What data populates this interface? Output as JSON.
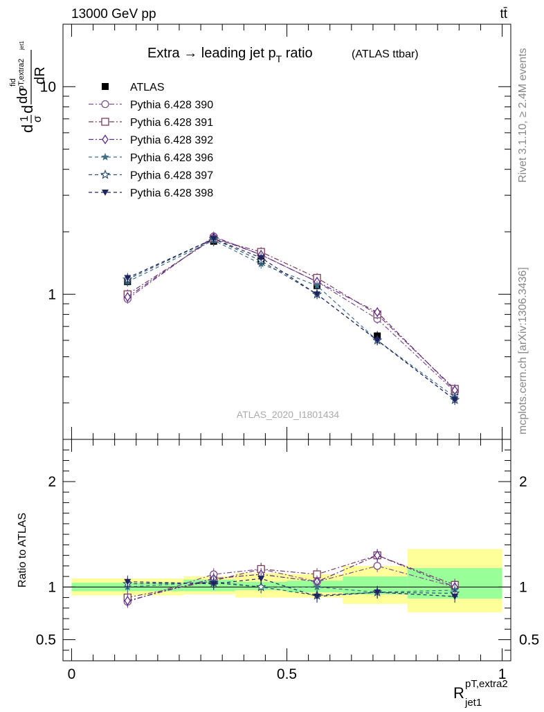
{
  "header": {
    "left": "13000 GeV pp",
    "right": "tt̄"
  },
  "side_labels": {
    "rivet": "Rivet 3.1.10, ≥ 2.4M events",
    "mcplots": "mcplots.cern.ch [arXiv:1306.3436]"
  },
  "watermark": "ATLAS_2020_I1801434",
  "chart_data": [
    {
      "type": "scatter",
      "title": "Extra → leading jet p",
      "title_sub": "T",
      "title_tail": " ratio",
      "title_note": "(ATLAS ttbar)",
      "ylabel_parts": {
        "d": "d",
        "one": "1",
        "sigma": "σ",
        "dsig": "dσ",
        "fid": "fid",
        "ptsub": "pT,extra2",
        "jet1": "jet1",
        "dR": "dR"
      },
      "yscale": "log",
      "ylim": [
        0.2,
        20
      ],
      "xlim": [
        -0.02,
        1.02
      ],
      "y_tick_labels": [
        {
          "v": 1,
          "t": "1"
        },
        {
          "v": 10,
          "t": "10"
        }
      ],
      "x": [
        0.13,
        0.33,
        0.44,
        0.57,
        0.71,
        0.89
      ],
      "series": [
        {
          "name": "ATLAS",
          "color": "#000000",
          "marker": "square-filled",
          "dash": "",
          "values": [
            1.15,
            1.8,
            1.45,
            1.1,
            0.63,
            0.34
          ]
        },
        {
          "name": "Pythia 6.428 390",
          "color": "#7d4d8c",
          "marker": "circle-open",
          "dash": "7,3,2,3",
          "values": [
            0.95,
            1.9,
            1.55,
            1.15,
            0.76,
            0.34
          ]
        },
        {
          "name": "Pythia 6.428 391",
          "color": "#7a3a5a",
          "marker": "square-open",
          "dash": "7,3,2,3",
          "values": [
            1.0,
            1.85,
            1.6,
            1.2,
            0.8,
            0.35
          ]
        },
        {
          "name": "Pythia 6.428 392",
          "color": "#5b2c88",
          "marker": "diamond-open",
          "dash": "7,3,2,3",
          "values": [
            0.97,
            1.88,
            1.55,
            1.15,
            0.82,
            0.345
          ]
        },
        {
          "name": "Pythia 6.428 396",
          "color": "#3e6f87",
          "marker": "star-filled",
          "dash": "5,4",
          "values": [
            1.15,
            1.82,
            1.4,
            1.1,
            0.6,
            0.32
          ]
        },
        {
          "name": "Pythia 6.428 397",
          "color": "#2e5170",
          "marker": "star-open",
          "dash": "5,4",
          "values": [
            1.18,
            1.85,
            1.45,
            1.0,
            0.6,
            0.31
          ]
        },
        {
          "name": "Pythia 6.428 398",
          "color": "#1e2460",
          "marker": "triangle-down-filled",
          "dash": "5,4",
          "values": [
            1.2,
            1.85,
            1.5,
            1.0,
            0.6,
            0.31
          ]
        }
      ]
    },
    {
      "type": "scatter",
      "ylabel": "Ratio to ATLAS",
      "xlabel": "R",
      "xlabel_sup": "pT,extra2",
      "xlabel_sub": "jet1",
      "ylim": [
        0.3,
        2.4
      ],
      "xlim": [
        -0.02,
        1.02
      ],
      "x_tick_labels": [
        {
          "v": 0,
          "t": "0"
        },
        {
          "v": 0.5,
          "t": "0.5"
        },
        {
          "v": 1,
          "t": "1"
        }
      ],
      "y_tick_labels": [
        {
          "v": 0.5,
          "t": "0.5"
        },
        {
          "v": 1,
          "t": "1"
        },
        {
          "v": 2,
          "t": "2"
        }
      ],
      "uncertainty_bands": [
        {
          "x0": 0.0,
          "x1": 0.26,
          "green": [
            0.96,
            1.04
          ],
          "yellow": [
            0.92,
            1.08
          ]
        },
        {
          "x0": 0.26,
          "x1": 0.38,
          "green": [
            0.96,
            1.07
          ],
          "yellow": [
            0.93,
            1.1
          ]
        },
        {
          "x0": 0.38,
          "x1": 0.5,
          "green": [
            0.97,
            1.05
          ],
          "yellow": [
            0.9,
            1.13
          ]
        },
        {
          "x0": 0.5,
          "x1": 0.63,
          "green": [
            0.95,
            1.06
          ],
          "yellow": [
            0.9,
            1.12
          ]
        },
        {
          "x0": 0.63,
          "x1": 0.78,
          "green": [
            0.93,
            1.1
          ],
          "yellow": [
            0.84,
            1.2
          ]
        },
        {
          "x0": 0.78,
          "x1": 1.0,
          "green": [
            0.89,
            1.18
          ],
          "yellow": [
            0.76,
            1.36
          ]
        }
      ],
      "band_colors": {
        "green": "#99ff99",
        "yellow": "#ffff99"
      },
      "ratio_values": [
        [
          0.86,
          1.12,
          1.17,
          1.05,
          1.2,
          1.0
        ],
        [
          0.9,
          1.06,
          1.17,
          1.12,
          1.3,
          1.02
        ],
        [
          0.87,
          1.08,
          1.12,
          1.05,
          1.3,
          1.0
        ],
        [
          1.0,
          1.05,
          1.0,
          1.0,
          0.95,
          0.97
        ],
        [
          1.03,
          1.04,
          1.0,
          0.92,
          0.95,
          0.94
        ],
        [
          1.05,
          1.03,
          1.08,
          0.91,
          0.95,
          0.91
        ]
      ]
    }
  ]
}
